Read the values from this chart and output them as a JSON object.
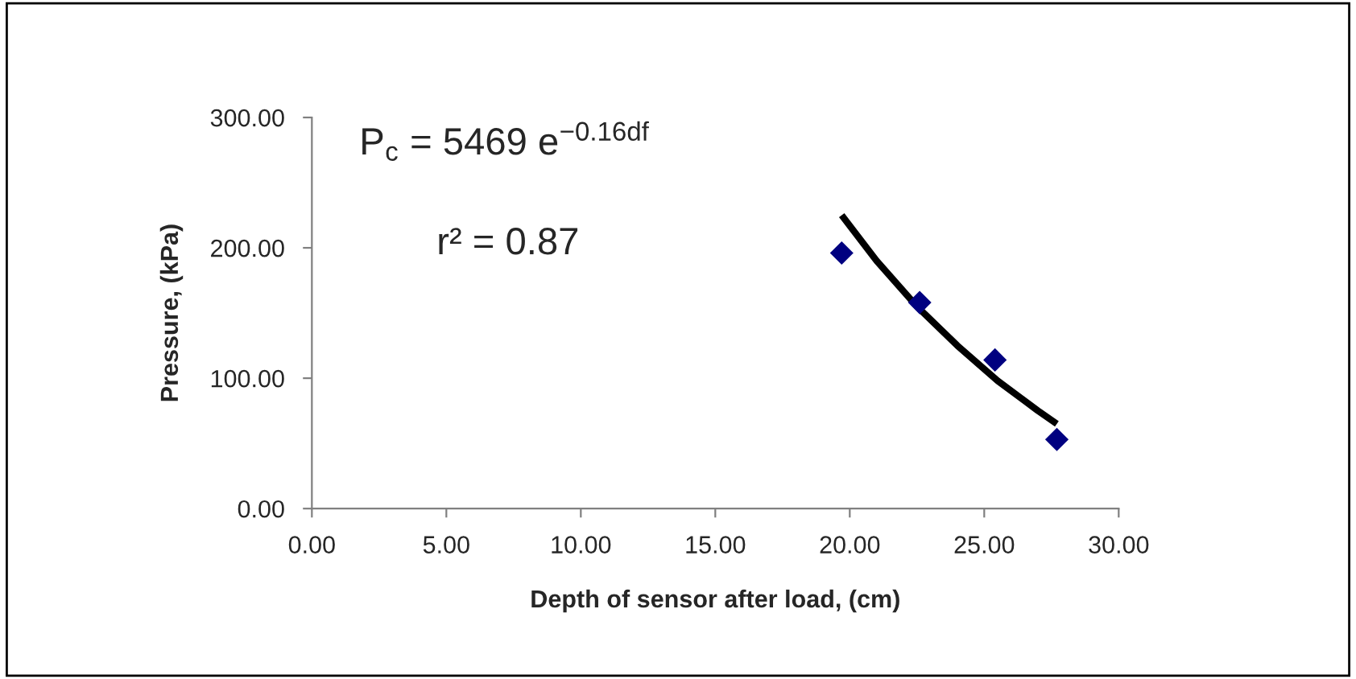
{
  "chart_data": {
    "type": "scatter",
    "xlabel": "Depth of sensor after load, (cm)",
    "ylabel": "Pressure, (kPa)",
    "series": [
      {
        "color": "#000080",
        "marker": "diamond",
        "x": [
          19.7,
          22.6,
          25.4,
          27.7
        ],
        "values": [
          196,
          158,
          114,
          53
        ]
      },
      {
        "type": "line",
        "color": "#000000",
        "marker": "none",
        "line_style": "solid",
        "x": [
          19.7,
          21,
          22.5,
          24,
          25.5,
          27,
          27.7
        ],
        "values": [
          225,
          190,
          155,
          125,
          98,
          75,
          65
        ]
      }
    ],
    "xlim": [
      0,
      30
    ],
    "ylim": [
      0,
      300
    ],
    "xticks": [
      {
        "value": 0,
        "label": "0.00"
      },
      {
        "value": 5,
        "label": "5.00"
      },
      {
        "value": 10,
        "label": "10.00"
      },
      {
        "value": 15,
        "label": "15.00"
      },
      {
        "value": 20,
        "label": "20.00"
      },
      {
        "value": 25,
        "label": "25.00"
      },
      {
        "value": 30,
        "label": "30.00"
      }
    ],
    "yticks": [
      {
        "value": 0,
        "label": "0.00"
      },
      {
        "value": 100,
        "label": "100.00"
      },
      {
        "value": 200,
        "label": "200.00"
      },
      {
        "value": 300,
        "label": "300.00"
      }
    ],
    "annotations": [
      "P$_{c}$ = 5469 e$^{−0.16df}$",
      "r² = 0.87"
    ],
    "grid": false,
    "legend": false
  }
}
